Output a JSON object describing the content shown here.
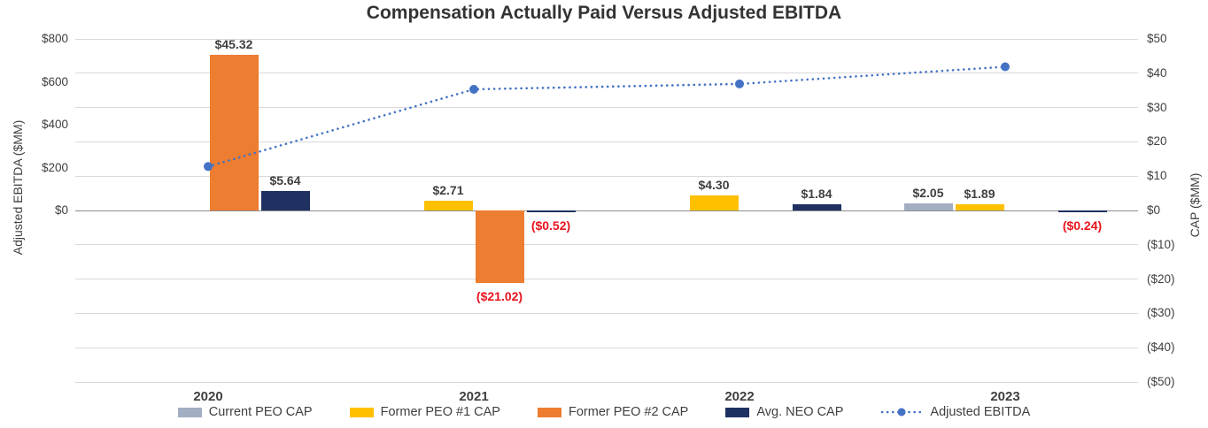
{
  "chart_data": {
    "type": "bar",
    "combo": "bar+line",
    "title": "Compensation Actually Paid Versus Adjusted EBITDA",
    "categories": [
      "2020",
      "2021",
      "2022",
      "2023"
    ],
    "series": [
      {
        "name": "Current PEO CAP",
        "type": "bar",
        "axis": "right",
        "color": "#a3aec2",
        "values": [
          null,
          null,
          null,
          2.05
        ]
      },
      {
        "name": "Former PEO #1 CAP",
        "type": "bar",
        "axis": "right",
        "color": "#ffc000",
        "values": [
          null,
          2.71,
          4.3,
          1.89
        ]
      },
      {
        "name": "Former PEO #2 CAP",
        "type": "bar",
        "axis": "right",
        "color": "#ed7d31",
        "values": [
          45.32,
          -21.02,
          null,
          null
        ]
      },
      {
        "name": "Avg. NEO CAP",
        "type": "bar",
        "axis": "right",
        "color": "#1f3161",
        "values": [
          5.64,
          -0.52,
          1.84,
          -0.24
        ]
      },
      {
        "name": "Adjusted EBITDA",
        "type": "line",
        "axis": "left",
        "color": "#4472c4",
        "style": "dotted",
        "values": [
          205,
          565,
          590,
          670
        ]
      }
    ],
    "left_axis": {
      "label": "Adjusted EBITDA ($MM)",
      "max": 800,
      "min": -800,
      "ticks": [
        800,
        600,
        400,
        200,
        0
      ]
    },
    "right_axis": {
      "label": "CAP ($MM)",
      "max": 50,
      "min": -50,
      "tick_step": 10
    },
    "data_label_color": "#404040",
    "negative_label_color": "#e8141e",
    "grid": true,
    "grid_color": "#d9d9d9",
    "zero_line_color": "#8c8c8c",
    "legend_position": "bottom"
  }
}
